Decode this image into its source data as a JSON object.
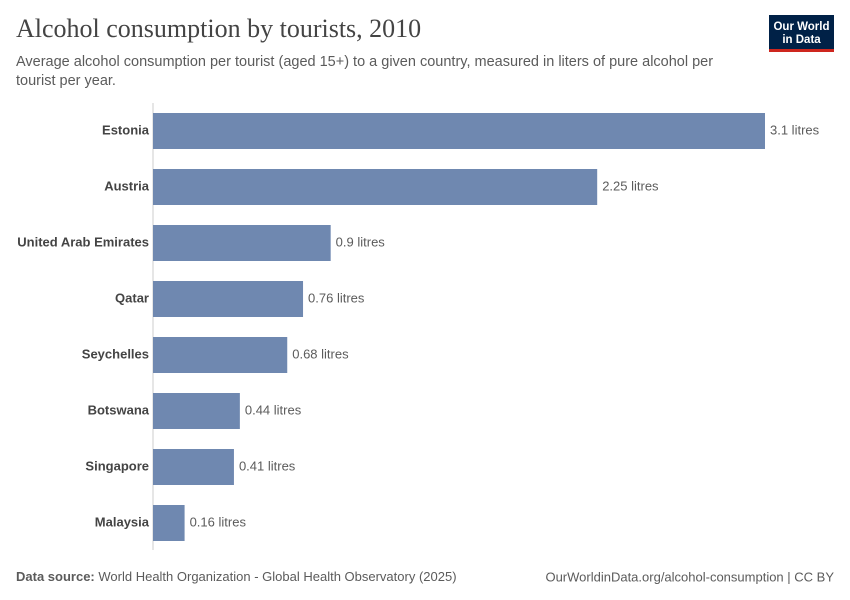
{
  "chart_data": {
    "type": "bar",
    "orientation": "horizontal",
    "title": "Alcohol consumption by tourists, 2010",
    "subtitle": "Average alcohol consumption per tourist (aged 15+) to a given country, measured in liters of pure alcohol per tourist per year.",
    "categories": [
      "Estonia",
      "Austria",
      "United Arab Emirates",
      "Qatar",
      "Seychelles",
      "Botswana",
      "Singapore",
      "Malaysia"
    ],
    "values": [
      3.1,
      2.25,
      0.9,
      0.76,
      0.68,
      0.44,
      0.41,
      0.16
    ],
    "value_labels": [
      "3.1 litres",
      "2.25 litres",
      "0.9 litres",
      "0.76 litres",
      "0.68 litres",
      "0.44 litres",
      "0.41 litres",
      "0.16 litres"
    ],
    "color": "#6f88b0",
    "source_label": "Data source:",
    "source": "World Health Organization - Global Health Observatory (2025)",
    "footer_right": "OurWorldinData.org/alcohol-consumption | CC BY",
    "logo": [
      "Our World",
      "in Data"
    ]
  }
}
